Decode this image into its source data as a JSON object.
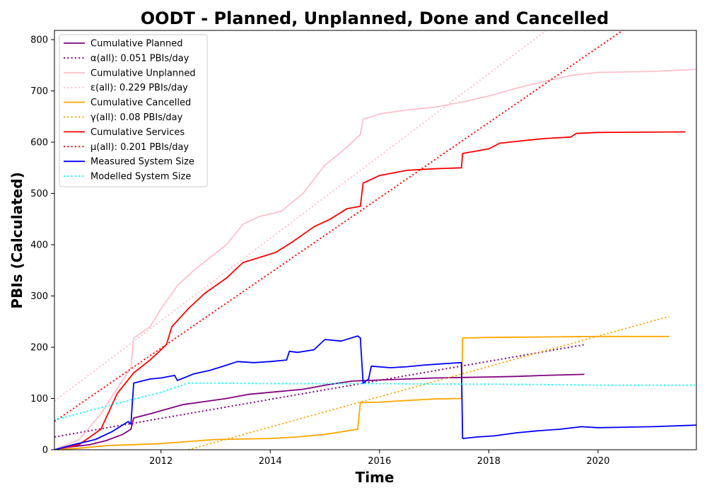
{
  "chart_data": {
    "type": "line",
    "title": "OODT - Planned, Unplanned, Done  and Cancelled",
    "xlabel": "Time",
    "ylabel": "PBIs (Calculated)",
    "xlim": [
      2010.05,
      2021.8
    ],
    "ylim": [
      0,
      818
    ],
    "x_ticks": [
      2012,
      2014,
      2016,
      2018,
      2020
    ],
    "y_ticks": [
      0,
      100,
      200,
      300,
      400,
      500,
      600,
      700,
      800
    ],
    "legend_position": "top-left",
    "grid": false,
    "series": [
      {
        "name": "Cumulative Planned",
        "color": "#800080",
        "style": "solid",
        "x": [
          2010.05,
          2010.3,
          2010.7,
          2011.0,
          2011.3,
          2011.45,
          2011.5,
          2011.8,
          2012.0,
          2012.4,
          2012.8,
          2013.2,
          2013.6,
          2014.0,
          2014.6,
          2015.0,
          2015.5,
          2016.0,
          2016.5,
          2017.0,
          2017.5,
          2018.0,
          2018.5,
          2019.0,
          2019.75
        ],
        "y": [
          0,
          5,
          10,
          18,
          30,
          40,
          62,
          70,
          76,
          88,
          94,
          100,
          108,
          112,
          118,
          126,
          134,
          136,
          138,
          140,
          141,
          142,
          143,
          145,
          147
        ]
      },
      {
        "name": "α(all): 0.051 PBIs/day",
        "color": "#800080",
        "style": "dotted",
        "x": [
          2010.05,
          2019.75
        ],
        "y": [
          25,
          205
        ]
      },
      {
        "name": "Cumulative Unplanned",
        "color": "#ffc0cb",
        "style": "solid",
        "x": [
          2010.05,
          2010.5,
          2010.9,
          2011.2,
          2011.45,
          2011.5,
          2011.8,
          2012.0,
          2012.3,
          2012.6,
          2012.9,
          2013.2,
          2013.5,
          2013.8,
          2014.2,
          2014.6,
          2015.0,
          2015.4,
          2015.65,
          2015.7,
          2016.0,
          2016.5,
          2017.0,
          2017.5,
          2018.0,
          2018.5,
          2019.0,
          2019.5,
          2020.0,
          2020.5,
          2021.0,
          2021.8
        ],
        "y": [
          0,
          20,
          70,
          120,
          160,
          218,
          240,
          275,
          320,
          350,
          375,
          400,
          440,
          455,
          465,
          500,
          555,
          590,
          615,
          645,
          655,
          663,
          668,
          678,
          690,
          705,
          718,
          730,
          736,
          737,
          738,
          742
        ]
      },
      {
        "name": "ε(all): 0.229 PBIs/day",
        "color": "#ffc0cb",
        "style": "dotted",
        "x": [
          2010.05,
          2019.05
        ],
        "y": [
          95,
          818
        ]
      },
      {
        "name": "Cumulative Cancelled",
        "color": "#ffa500",
        "style": "solid",
        "x": [
          2010.05,
          2010.5,
          2011.0,
          2011.5,
          2012.0,
          2012.5,
          2013.0,
          2014.0,
          2014.5,
          2015.0,
          2015.6,
          2015.65,
          2016.0,
          2016.5,
          2017.0,
          2017.5,
          2017.52,
          2018.0,
          2019.0,
          2020.0,
          2021.3
        ],
        "y": [
          0,
          3,
          8,
          10,
          12,
          16,
          20,
          22,
          25,
          30,
          40,
          92,
          93,
          96,
          99,
          100,
          218,
          219,
          220,
          221,
          221
        ]
      },
      {
        "name": "γ(all): 0.08 PBIs/day",
        "color": "#ffa500",
        "style": "dotted",
        "x": [
          2012.5,
          2021.3
        ],
        "y": [
          0,
          260
        ]
      },
      {
        "name": "Cumulative Services",
        "color": "#ff0000",
        "style": "solid",
        "x": [
          2010.05,
          2010.5,
          2010.9,
          2011.2,
          2011.5,
          2011.8,
          2012.1,
          2012.2,
          2012.5,
          2012.8,
          2013.2,
          2013.5,
          2013.8,
          2014.1,
          2014.4,
          2014.8,
          2015.1,
          2015.4,
          2015.65,
          2015.7,
          2016.0,
          2016.5,
          2017.0,
          2017.5,
          2017.52,
          2018.0,
          2018.2,
          2019.0,
          2019.5,
          2019.6,
          2020.0,
          2021.6
        ],
        "y": [
          0,
          10,
          40,
          110,
          150,
          175,
          205,
          240,
          275,
          305,
          335,
          365,
          375,
          385,
          405,
          435,
          450,
          470,
          475,
          520,
          535,
          545,
          548,
          550,
          578,
          587,
          598,
          607,
          610,
          617,
          619,
          620
        ]
      },
      {
        "name": "μ(all): 0.201 PBIs/day",
        "color": "#ff0000",
        "style": "dotted",
        "x": [
          2010.05,
          2020.45
        ],
        "y": [
          55,
          818
        ]
      },
      {
        "name": "Measured System Size",
        "color": "#0000ff",
        "style": "solid",
        "x": [
          2010.05,
          2010.4,
          2010.8,
          2011.1,
          2011.4,
          2011.45,
          2011.5,
          2011.8,
          2012.0,
          2012.25,
          2012.3,
          2012.6,
          2012.9,
          2013.2,
          2013.4,
          2013.7,
          2014.0,
          2014.3,
          2014.35,
          2014.5,
          2014.8,
          2015.0,
          2015.3,
          2015.6,
          2015.65,
          2015.7,
          2015.8,
          2015.85,
          2016.2,
          2016.5,
          2016.8,
          2017.2,
          2017.5,
          2017.52,
          2017.8,
          2018.1,
          2018.5,
          2018.9,
          2019.3,
          2019.7,
          2020.0,
          2020.5,
          2021.0,
          2021.8
        ],
        "y": [
          0,
          10,
          20,
          35,
          55,
          50,
          130,
          138,
          140,
          145,
          135,
          148,
          155,
          165,
          172,
          170,
          172,
          175,
          192,
          190,
          195,
          215,
          212,
          222,
          218,
          130,
          138,
          163,
          160,
          162,
          165,
          168,
          170,
          22,
          25,
          27,
          33,
          37,
          40,
          45,
          43,
          44,
          45,
          48
        ]
      },
      {
        "name": "Modelled System Size",
        "color": "#00ffff",
        "style": "dotted",
        "x": [
          2010.05,
          2011.0,
          2012.0,
          2012.5,
          2013.0,
          2014.0,
          2015.0,
          2016.0,
          2017.0,
          2018.0,
          2019.0,
          2020.0,
          2021.0,
          2021.8
        ],
        "y": [
          58,
          85,
          112,
          130,
          130,
          129,
          129,
          129,
          128,
          128,
          127,
          126,
          126,
          126
        ]
      }
    ]
  }
}
